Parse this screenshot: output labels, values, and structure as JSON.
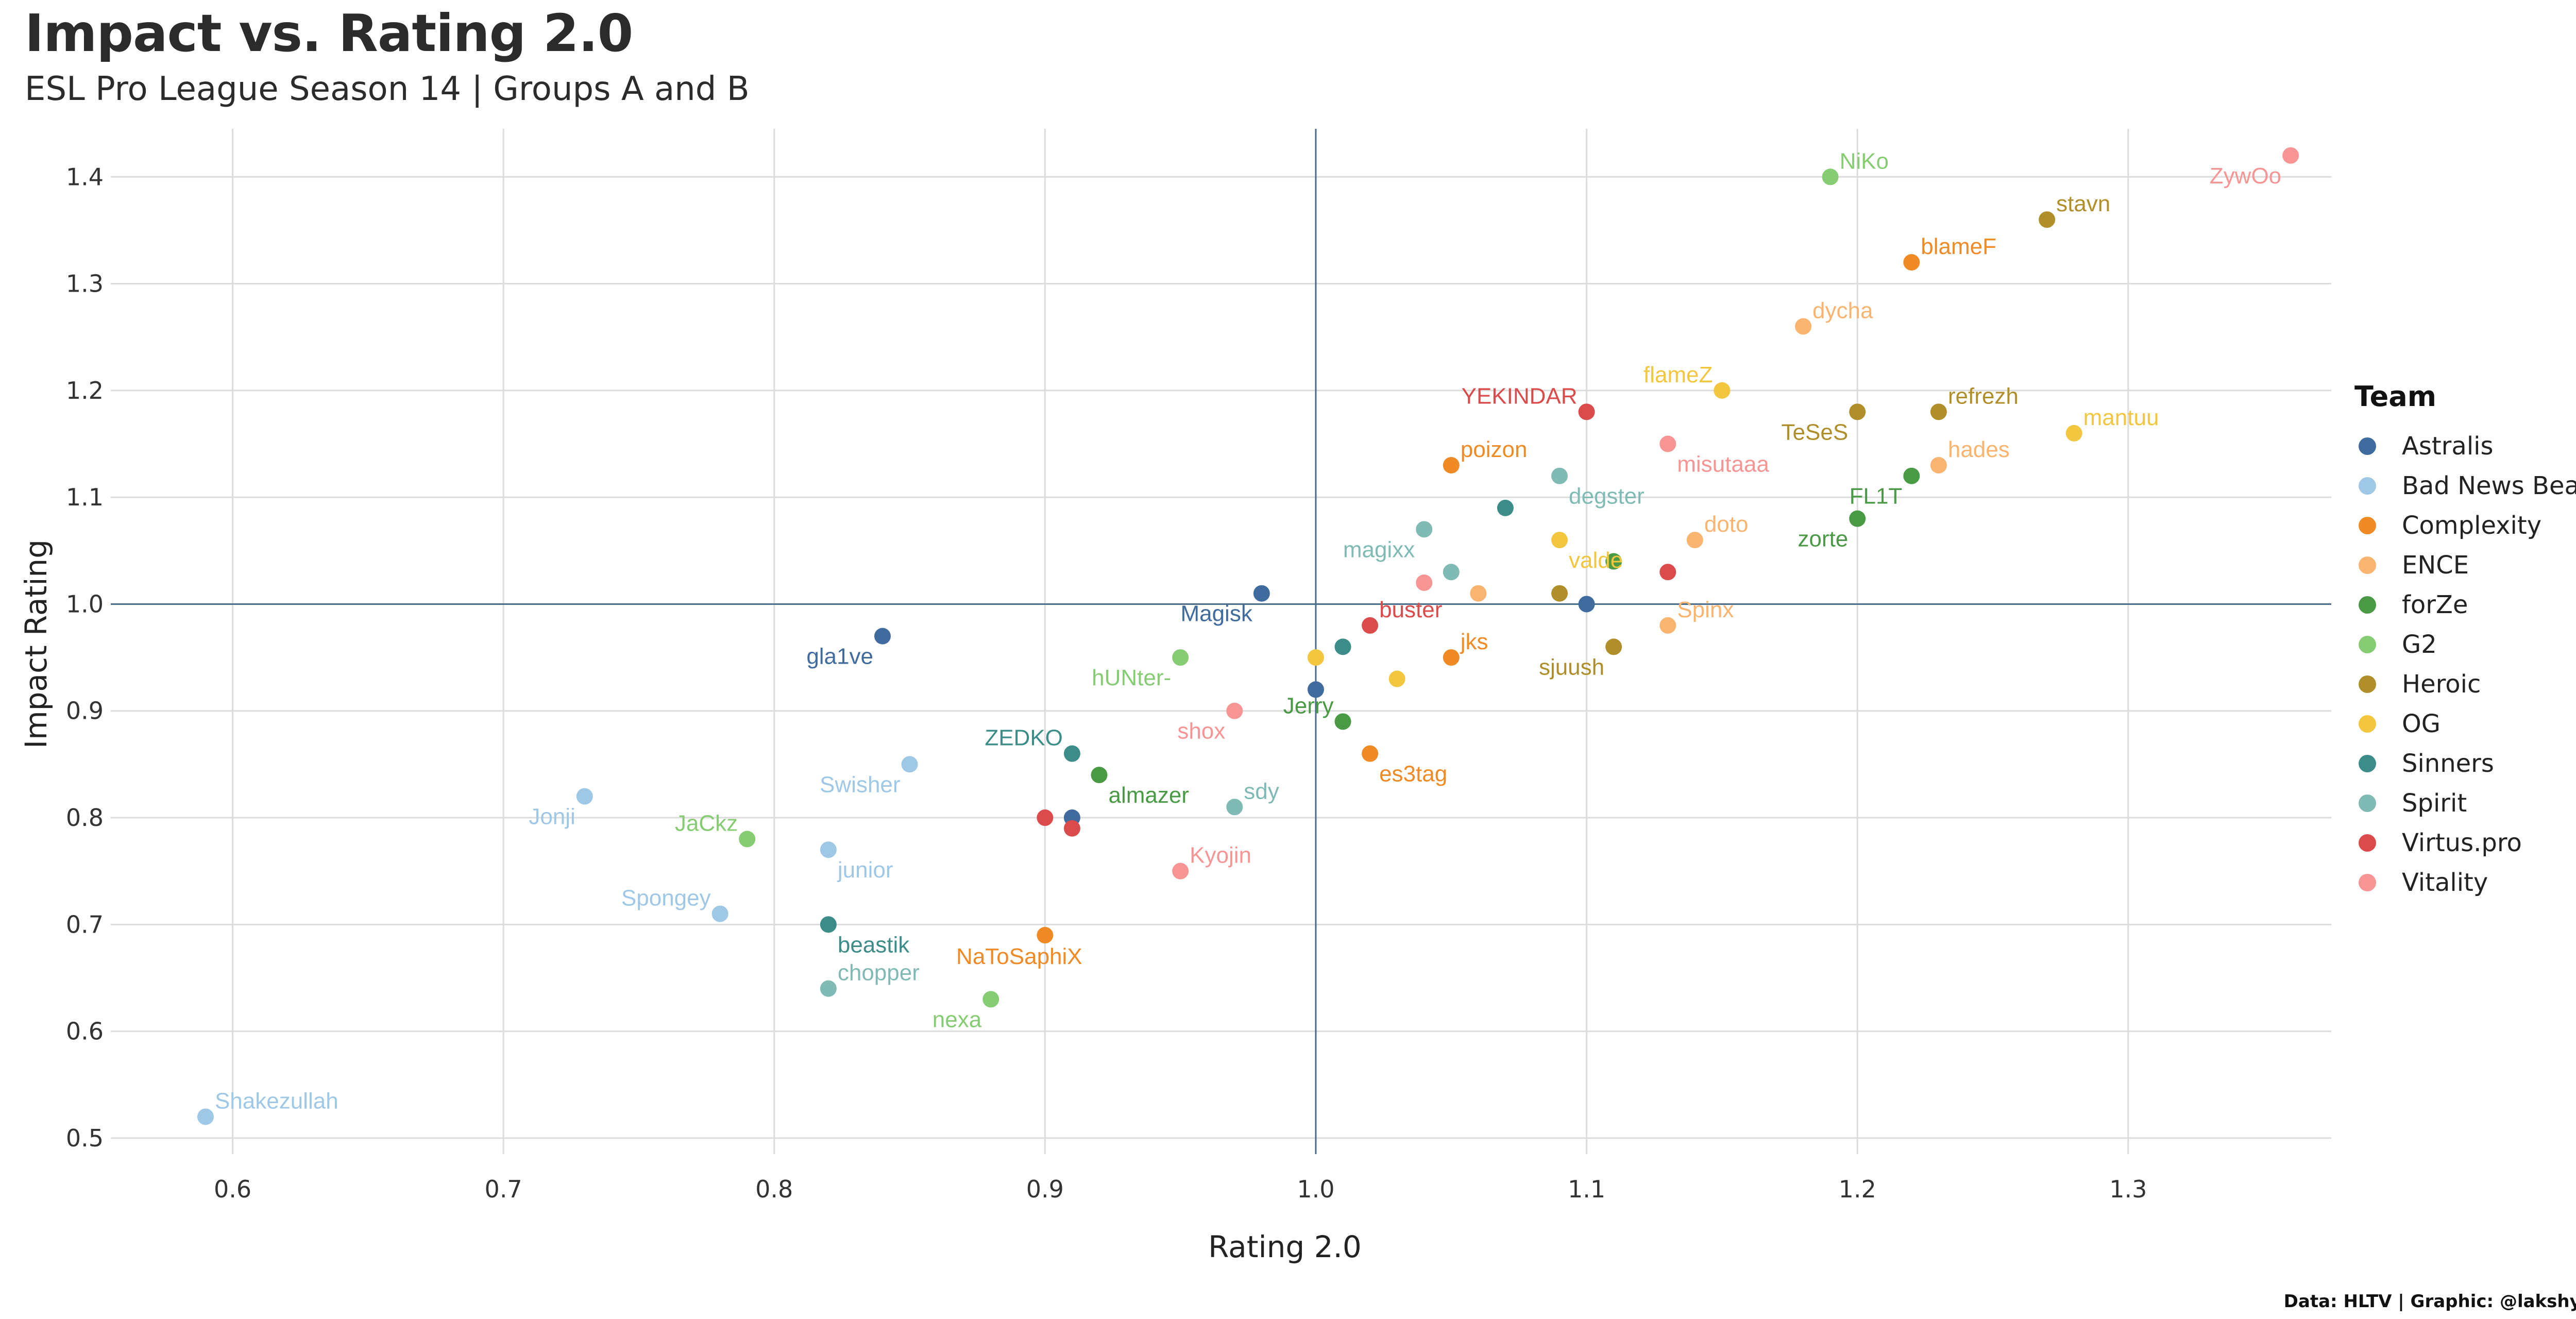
{
  "chart_data": {
    "type": "scatter",
    "title": "Impact vs. Rating 2.0",
    "subtitle": "ESL Pro League Season 14 | Groups A and B",
    "xlabel": "Rating 2.0",
    "ylabel": "Impact Rating",
    "caption": "Data: HLTV | Graphic: @lakshyaag",
    "xlim": [
      0.555,
      1.375
    ],
    "ylim": [
      0.485,
      1.445
    ],
    "xticks": [
      "0.6",
      "0.7",
      "0.8",
      "0.9",
      "1.0",
      "1.1",
      "1.2",
      "1.3"
    ],
    "yticks": [
      "0.5",
      "0.6",
      "0.7",
      "0.8",
      "0.9",
      "1.0",
      "1.1",
      "1.2",
      "1.3",
      "1.4"
    ],
    "reference_lines": {
      "x": 1.0,
      "y": 1.0
    },
    "grid": true,
    "legend": {
      "title": "Team",
      "placement": "right",
      "entries": [
        {
          "name": "Astralis",
          "color": "#3F6B9E"
        },
        {
          "name": "Bad News Bears",
          "color": "#9FC8E6"
        },
        {
          "name": "Complexity",
          "color": "#F08A24"
        },
        {
          "name": "ENCE",
          "color": "#F9B46F"
        },
        {
          "name": "forZe",
          "color": "#4A9A45"
        },
        {
          "name": "G2",
          "color": "#86CC73"
        },
        {
          "name": "Heroic",
          "color": "#B08F2A"
        },
        {
          "name": "OG",
          "color": "#F3C63F"
        },
        {
          "name": "Sinners",
          "color": "#3C8D8A"
        },
        {
          "name": "Spirit",
          "color": "#7FBAB4"
        },
        {
          "name": "Virtus.pro",
          "color": "#DC4B4B"
        },
        {
          "name": "Vitality",
          "color": "#F79595"
        }
      ]
    },
    "points": [
      {
        "player": "ZywOo",
        "team": "Vitality",
        "x": 1.36,
        "y": 1.42,
        "label_pos": "left-down"
      },
      {
        "player": "NiKo",
        "team": "G2",
        "x": 1.19,
        "y": 1.4,
        "label_pos": "right-up"
      },
      {
        "player": "stavn",
        "team": "Heroic",
        "x": 1.27,
        "y": 1.36,
        "label_pos": "right-up"
      },
      {
        "player": "blameF",
        "team": "Complexity",
        "x": 1.22,
        "y": 1.32,
        "label_pos": "right-up"
      },
      {
        "player": "dycha",
        "team": "ENCE",
        "x": 1.18,
        "y": 1.26,
        "label_pos": "right-up"
      },
      {
        "player": "flameZ",
        "team": "OG",
        "x": 1.15,
        "y": 1.2,
        "label_pos": "left-up"
      },
      {
        "player": "YEKINDAR",
        "team": "Virtus.pro",
        "x": 1.1,
        "y": 1.18,
        "label_pos": "left-up"
      },
      {
        "player": "refrezh",
        "team": "Heroic",
        "x": 1.23,
        "y": 1.18,
        "label_pos": "right-up"
      },
      {
        "player": "TeSeS",
        "team": "Heroic",
        "x": 1.2,
        "y": 1.18,
        "label_pos": "left-down"
      },
      {
        "player": "mantuu",
        "team": "OG",
        "x": 1.28,
        "y": 1.16,
        "label_pos": "right-up"
      },
      {
        "player": "misutaaa",
        "team": "Vitality",
        "x": 1.13,
        "y": 1.15,
        "label_pos": "right-down"
      },
      {
        "player": "hades",
        "team": "ENCE",
        "x": 1.23,
        "y": 1.13,
        "label_pos": "right-up"
      },
      {
        "player": "poizon",
        "team": "Complexity",
        "x": 1.05,
        "y": 1.13,
        "label_pos": "right-up"
      },
      {
        "player": "degster",
        "team": "Spirit",
        "x": 1.09,
        "y": 1.12,
        "label_pos": "right-down"
      },
      {
        "player": "FL1T",
        "team": "forZe",
        "x": 1.22,
        "y": 1.12,
        "label_pos": "left-down"
      },
      {
        "player": "",
        "team": "Sinners",
        "x": 1.07,
        "y": 1.09,
        "label_pos": "none"
      },
      {
        "player": "zorte",
        "team": "forZe",
        "x": 1.2,
        "y": 1.08,
        "label_pos": "left-down"
      },
      {
        "player": "magixx",
        "team": "Spirit",
        "x": 1.04,
        "y": 1.07,
        "label_pos": "left-down"
      },
      {
        "player": "doto",
        "team": "ENCE",
        "x": 1.14,
        "y": 1.06,
        "label_pos": "right-up"
      },
      {
        "player": "valde",
        "team": "OG",
        "x": 1.09,
        "y": 1.06,
        "label_pos": "right-down"
      },
      {
        "player": "",
        "team": "forZe",
        "x": 1.11,
        "y": 1.04,
        "label_pos": "none"
      },
      {
        "player": "",
        "team": "Spirit",
        "x": 1.05,
        "y": 1.03,
        "label_pos": "none"
      },
      {
        "player": "",
        "team": "Virtus.pro",
        "x": 1.13,
        "y": 1.03,
        "label_pos": "none"
      },
      {
        "player": "",
        "team": "Vitality",
        "x": 1.04,
        "y": 1.02,
        "label_pos": "none"
      },
      {
        "player": "",
        "team": "ENCE",
        "x": 1.06,
        "y": 1.01,
        "label_pos": "none"
      },
      {
        "player": "Magisk",
        "team": "Astralis",
        "x": 0.98,
        "y": 1.01,
        "label_pos": "left-down"
      },
      {
        "player": "",
        "team": "Heroic",
        "x": 1.09,
        "y": 1.01,
        "label_pos": "none"
      },
      {
        "player": "",
        "team": "Astralis",
        "x": 1.1,
        "y": 1.0,
        "label_pos": "none"
      },
      {
        "player": "buster",
        "team": "Virtus.pro",
        "x": 1.02,
        "y": 0.98,
        "label_pos": "right-up"
      },
      {
        "player": "Spinx",
        "team": "ENCE",
        "x": 1.13,
        "y": 0.98,
        "label_pos": "right-up"
      },
      {
        "player": "gla1ve",
        "team": "Astralis",
        "x": 0.84,
        "y": 0.97,
        "label_pos": "left-down"
      },
      {
        "player": "",
        "team": "Sinners",
        "x": 1.01,
        "y": 0.96,
        "label_pos": "none"
      },
      {
        "player": "sjuush",
        "team": "Heroic",
        "x": 1.11,
        "y": 0.96,
        "label_pos": "left-down"
      },
      {
        "player": "hUNter-",
        "team": "G2",
        "x": 0.95,
        "y": 0.95,
        "label_pos": "left-down"
      },
      {
        "player": "",
        "team": "OG",
        "x": 1.0,
        "y": 0.95,
        "label_pos": "none"
      },
      {
        "player": "jks",
        "team": "Complexity",
        "x": 1.05,
        "y": 0.95,
        "label_pos": "right-up"
      },
      {
        "player": "",
        "team": "OG",
        "x": 1.03,
        "y": 0.93,
        "label_pos": "none"
      },
      {
        "player": "",
        "team": "Astralis",
        "x": 1.0,
        "y": 0.92,
        "label_pos": "none"
      },
      {
        "player": "shox",
        "team": "Vitality",
        "x": 0.97,
        "y": 0.9,
        "label_pos": "left-down"
      },
      {
        "player": "Jerry",
        "team": "forZe",
        "x": 1.01,
        "y": 0.89,
        "label_pos": "left-up"
      },
      {
        "player": "ZEDKO",
        "team": "Sinners",
        "x": 0.91,
        "y": 0.86,
        "label_pos": "left-up"
      },
      {
        "player": "es3tag",
        "team": "Complexity",
        "x": 1.02,
        "y": 0.86,
        "label_pos": "right-down"
      },
      {
        "player": "Swisher",
        "team": "Bad News Bears",
        "x": 0.85,
        "y": 0.85,
        "label_pos": "left-down"
      },
      {
        "player": "almazer",
        "team": "forZe",
        "x": 0.92,
        "y": 0.84,
        "label_pos": "right-down"
      },
      {
        "player": "Jonji",
        "team": "Bad News Bears",
        "x": 0.73,
        "y": 0.82,
        "label_pos": "left-down"
      },
      {
        "player": "sdy",
        "team": "Spirit",
        "x": 0.97,
        "y": 0.81,
        "label_pos": "right-up"
      },
      {
        "player": "",
        "team": "Virtus.pro",
        "x": 0.9,
        "y": 0.8,
        "label_pos": "none"
      },
      {
        "player": "",
        "team": "Astralis",
        "x": 0.91,
        "y": 0.8,
        "label_pos": "none"
      },
      {
        "player": "",
        "team": "Virtus.pro",
        "x": 0.91,
        "y": 0.79,
        "label_pos": "none"
      },
      {
        "player": "JaCkz",
        "team": "G2",
        "x": 0.79,
        "y": 0.78,
        "label_pos": "left-up"
      },
      {
        "player": "junior",
        "team": "Bad News Bears",
        "x": 0.82,
        "y": 0.77,
        "label_pos": "right-down"
      },
      {
        "player": "Kyojin",
        "team": "Vitality",
        "x": 0.95,
        "y": 0.75,
        "label_pos": "right-up"
      },
      {
        "player": "Spongey",
        "team": "Bad News Bears",
        "x": 0.78,
        "y": 0.71,
        "label_pos": "left-up"
      },
      {
        "player": "beastik",
        "team": "Sinners",
        "x": 0.82,
        "y": 0.7,
        "label_pos": "right-down"
      },
      {
        "player": "NaToSaphiX",
        "team": "Complexity",
        "x": 0.9,
        "y": 0.69,
        "label_pos": "center-down"
      },
      {
        "player": "chopper",
        "team": "Spirit",
        "x": 0.82,
        "y": 0.64,
        "label_pos": "right-up"
      },
      {
        "player": "nexa",
        "team": "G2",
        "x": 0.88,
        "y": 0.63,
        "label_pos": "left-down"
      },
      {
        "player": "Shakezullah",
        "team": "Bad News Bears",
        "x": 0.59,
        "y": 0.52,
        "label_pos": "right-up"
      }
    ]
  }
}
